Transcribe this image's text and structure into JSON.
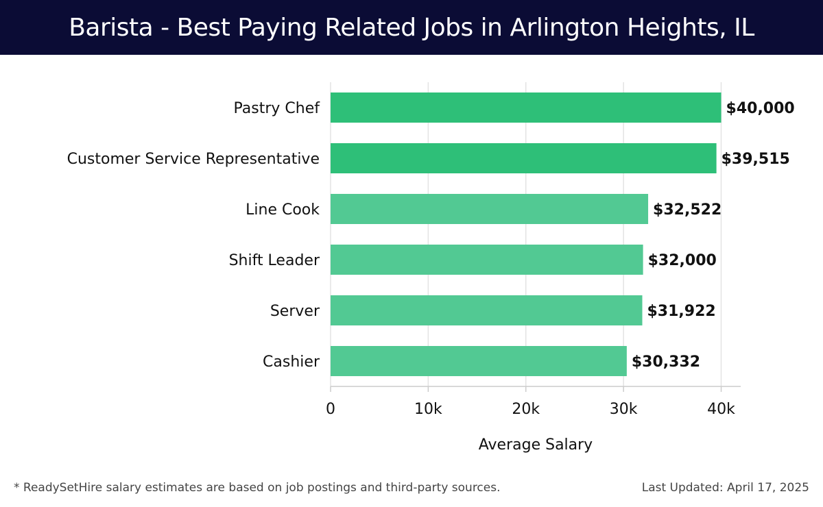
{
  "header": {
    "title": "Barista - Best Paying Related Jobs in Arlington Heights, IL"
  },
  "colors": {
    "header_bg": "#0b0c35",
    "bar_top": "#2ebf78",
    "bar": "#52c993"
  },
  "chart_data": {
    "type": "bar",
    "orientation": "horizontal",
    "categories": [
      "Pastry Chef",
      "Customer Service Representative",
      "Line Cook",
      "Shift Leader",
      "Server",
      "Cashier"
    ],
    "values": [
      40000,
      39515,
      32522,
      32000,
      31922,
      30332
    ],
    "value_labels": [
      "$40,000",
      "$39,515",
      "$32,522",
      "$32,000",
      "$31,922",
      "$30,332"
    ],
    "xlabel": "Average Salary",
    "xlim": [
      0,
      42000
    ],
    "x_ticks": [
      0,
      10000,
      20000,
      30000,
      40000
    ],
    "x_tick_labels": [
      "0",
      "10k",
      "20k",
      "30k",
      "40k"
    ],
    "grid": "vertical"
  },
  "footer": {
    "note": "* ReadySetHire salary estimates are based on job postings and third-party sources.",
    "updated": "Last Updated: April 17, 2025"
  }
}
